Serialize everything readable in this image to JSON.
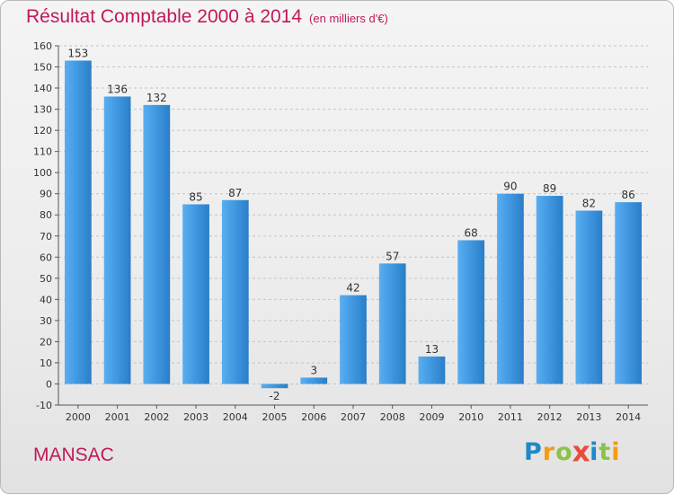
{
  "chart_data": {
    "type": "bar",
    "title": "Résultat Comptable 2000 à 2014",
    "subtitle": "(en milliers d'€)",
    "categories": [
      "2000",
      "2001",
      "2002",
      "2003",
      "2004",
      "2005",
      "2006",
      "2007",
      "2008",
      "2009",
      "2010",
      "2011",
      "2012",
      "2013",
      "2014"
    ],
    "values": [
      153,
      136,
      132,
      85,
      87,
      -2,
      3,
      42,
      57,
      13,
      68,
      90,
      89,
      82,
      86
    ],
    "ylim": [
      -10,
      160
    ],
    "yticks": [
      -10,
      0,
      10,
      20,
      30,
      40,
      50,
      60,
      70,
      80,
      90,
      100,
      110,
      120,
      130,
      140,
      150,
      160
    ],
    "grid": true,
    "bar_color": "#3a8fd6"
  },
  "place_name": "MANSAC",
  "logo": {
    "text": "Proxiti",
    "letters": [
      {
        "ch": "P",
        "color": "#1e88c8"
      },
      {
        "ch": "r",
        "color": "#f39c12"
      },
      {
        "ch": "o",
        "color": "#8bc34a"
      },
      {
        "ch": "x",
        "color": "#e74c3c"
      },
      {
        "ch": "i",
        "color": "#1e88c8"
      },
      {
        "ch": "t",
        "color": "#8bc34a"
      },
      {
        "ch": "i",
        "color": "#f39c12"
      }
    ]
  }
}
